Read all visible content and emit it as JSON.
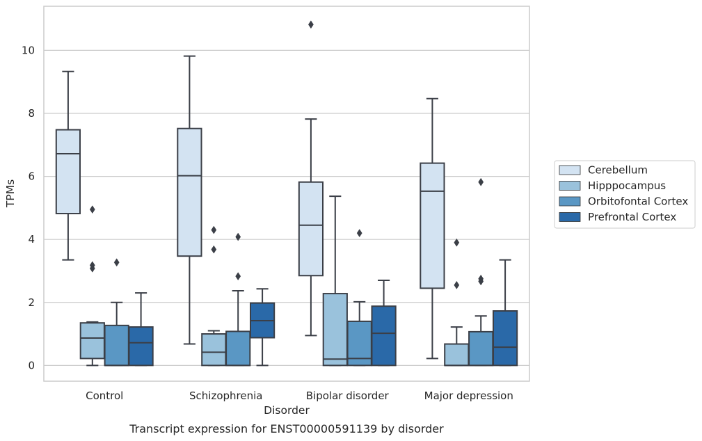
{
  "caption": "Transcript expression for ENST00000591139 by disorder",
  "chart_data": {
    "type": "box",
    "xlabel": "Disorder",
    "ylabel": "TPMs",
    "ylim": [
      -0.5,
      11.4
    ],
    "yticks": [
      0,
      2,
      4,
      6,
      8,
      10
    ],
    "grid": "horizontal",
    "legend_position": "right-outside",
    "categories": [
      "Control",
      "Schizophrenia",
      "Bipolar disorder",
      "Major depression"
    ],
    "series": [
      {
        "name": "Cerebellum",
        "color": "#d3e3f2",
        "boxes": [
          {
            "whislo": 3.35,
            "q1": 4.82,
            "med": 6.72,
            "q3": 7.48,
            "whishi": 9.33,
            "fliers": []
          },
          {
            "whislo": 0.68,
            "q1": 3.47,
            "med": 6.02,
            "q3": 7.52,
            "whishi": 9.82,
            "fliers": []
          },
          {
            "whislo": 0.95,
            "q1": 2.85,
            "med": 4.45,
            "q3": 5.82,
            "whishi": 7.82,
            "fliers": [
              10.82
            ]
          },
          {
            "whislo": 0.22,
            "q1": 2.45,
            "med": 5.53,
            "q3": 6.42,
            "whishi": 8.47,
            "fliers": []
          }
        ]
      },
      {
        "name": "Hipppocampus",
        "color": "#9ac2dc",
        "boxes": [
          {
            "whislo": 0.0,
            "q1": 0.22,
            "med": 0.87,
            "q3": 1.35,
            "whishi": 1.38,
            "fliers": [
              4.95,
              3.18,
              3.08
            ]
          },
          {
            "whislo": 0.0,
            "q1": 0.0,
            "med": 0.42,
            "q3": 1.0,
            "whishi": 1.1,
            "fliers": [
              4.3,
              3.68
            ]
          },
          {
            "whislo": 0.0,
            "q1": 0.0,
            "med": 0.2,
            "q3": 2.28,
            "whishi": 5.37,
            "fliers": []
          },
          {
            "whislo": 0.0,
            "q1": 0.0,
            "med": 0.0,
            "q3": 0.68,
            "whishi": 1.22,
            "fliers": [
              3.9,
              2.55
            ]
          }
        ]
      },
      {
        "name": "Orbitofontal Cortex",
        "color": "#5a97c4",
        "boxes": [
          {
            "whislo": 0.0,
            "q1": 0.0,
            "med": 0.0,
            "q3": 1.27,
            "whishi": 2.0,
            "fliers": [
              3.27
            ]
          },
          {
            "whislo": 0.0,
            "q1": 0.0,
            "med": 0.0,
            "q3": 1.08,
            "whishi": 2.37,
            "fliers": [
              4.08,
              2.83
            ]
          },
          {
            "whislo": 0.0,
            "q1": 0.0,
            "med": 0.22,
            "q3": 1.4,
            "whishi": 2.02,
            "fliers": [
              4.2
            ]
          },
          {
            "whislo": 0.0,
            "q1": 0.0,
            "med": 0.0,
            "q3": 1.07,
            "whishi": 1.57,
            "fliers": [
              5.82,
              2.75,
              2.67
            ]
          }
        ]
      },
      {
        "name": "Prefrontal Cortex",
        "color": "#2a69a8",
        "boxes": [
          {
            "whislo": 0.0,
            "q1": 0.0,
            "med": 0.72,
            "q3": 1.22,
            "whishi": 2.3,
            "fliers": []
          },
          {
            "whislo": 0.0,
            "q1": 0.88,
            "med": 1.42,
            "q3": 1.98,
            "whishi": 2.43,
            "fliers": []
          },
          {
            "whislo": 0.0,
            "q1": 0.0,
            "med": 1.02,
            "q3": 1.88,
            "whishi": 2.7,
            "fliers": []
          },
          {
            "whislo": 0.0,
            "q1": 0.0,
            "med": 0.58,
            "q3": 1.73,
            "whishi": 3.35,
            "fliers": []
          }
        ]
      }
    ]
  }
}
